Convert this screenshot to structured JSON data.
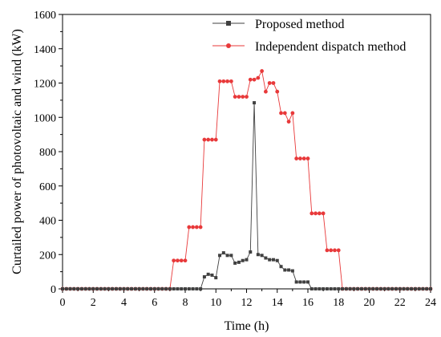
{
  "chart_data": {
    "type": "line",
    "title": "",
    "xlabel": "Time (h)",
    "ylabel": "Curtailed power of photovoltaic and wind (kW)",
    "xlim": [
      0,
      24
    ],
    "ylim": [
      0,
      1600
    ],
    "xticks": [
      0,
      2,
      4,
      6,
      8,
      10,
      12,
      14,
      16,
      18,
      20,
      22,
      24
    ],
    "yticks": [
      0,
      200,
      400,
      600,
      800,
      1000,
      1200,
      1400,
      1600
    ],
    "grid": false,
    "legend_position": "top-right",
    "series": [
      {
        "name": "Proposed method",
        "color": "#404040",
        "marker": "square",
        "x": [
          0,
          0.25,
          0.5,
          0.75,
          1,
          1.25,
          1.5,
          1.75,
          2,
          2.25,
          2.5,
          2.75,
          3,
          3.25,
          3.5,
          3.75,
          4,
          4.25,
          4.5,
          4.75,
          5,
          5.25,
          5.5,
          5.75,
          6,
          6.25,
          6.5,
          6.75,
          7,
          7.25,
          7.5,
          7.75,
          8,
          8.25,
          8.5,
          8.75,
          9,
          9.25,
          9.5,
          9.75,
          10,
          10.25,
          10.5,
          10.75,
          11,
          11.25,
          11.5,
          11.75,
          12,
          12.25,
          12.5,
          12.75,
          13,
          13.25,
          13.5,
          13.75,
          14,
          14.25,
          14.5,
          14.75,
          15,
          15.25,
          15.5,
          15.75,
          16,
          16.25,
          16.5,
          16.75,
          17,
          17.25,
          17.5,
          17.75,
          18,
          18.25,
          18.5,
          18.75,
          19,
          19.25,
          19.5,
          19.75,
          20,
          20.25,
          20.5,
          20.75,
          21,
          21.25,
          21.5,
          21.75,
          22,
          22.25,
          22.5,
          22.75,
          23,
          23.25,
          23.5,
          23.75,
          24
        ],
        "y": [
          0,
          0,
          0,
          0,
          0,
          0,
          0,
          0,
          0,
          0,
          0,
          0,
          0,
          0,
          0,
          0,
          0,
          0,
          0,
          0,
          0,
          0,
          0,
          0,
          0,
          0,
          0,
          0,
          0,
          0,
          0,
          0,
          0,
          0,
          0,
          0,
          0,
          70,
          85,
          80,
          65,
          195,
          210,
          195,
          195,
          150,
          155,
          165,
          170,
          215,
          1085,
          200,
          195,
          180,
          170,
          170,
          165,
          130,
          110,
          110,
          105,
          40,
          40,
          40,
          40,
          0,
          0,
          0,
          0,
          0,
          0,
          0,
          0,
          0,
          0,
          0,
          0,
          0,
          0,
          0,
          0,
          0,
          0,
          0,
          0,
          0,
          0,
          0,
          0,
          0,
          0,
          0,
          0,
          0,
          0,
          0,
          0
        ]
      },
      {
        "name": "Independent dispatch method",
        "color": "#e8393a",
        "marker": "circle",
        "x": [
          0,
          0.25,
          0.5,
          0.75,
          1,
          1.25,
          1.5,
          1.75,
          2,
          2.25,
          2.5,
          2.75,
          3,
          3.25,
          3.5,
          3.75,
          4,
          4.25,
          4.5,
          4.75,
          5,
          5.25,
          5.5,
          5.75,
          6,
          6.25,
          6.5,
          6.75,
          7,
          7.25,
          7.5,
          7.75,
          8,
          8.25,
          8.5,
          8.75,
          9,
          9.25,
          9.5,
          9.75,
          10,
          10.25,
          10.5,
          10.75,
          11,
          11.25,
          11.5,
          11.75,
          12,
          12.25,
          12.5,
          12.75,
          13,
          13.25,
          13.5,
          13.75,
          14,
          14.25,
          14.5,
          14.75,
          15,
          15.25,
          15.5,
          15.75,
          16,
          16.25,
          16.5,
          16.75,
          17,
          17.25,
          17.5,
          17.75,
          18,
          18.25,
          18.5,
          18.75,
          19,
          19.25,
          19.5,
          19.75,
          20,
          20.25,
          20.5,
          20.75,
          21,
          21.25,
          21.5,
          21.75,
          22,
          22.25,
          22.5,
          22.75,
          23,
          23.25,
          23.5,
          23.75,
          24
        ],
        "y": [
          0,
          0,
          0,
          0,
          0,
          0,
          0,
          0,
          0,
          0,
          0,
          0,
          0,
          0,
          0,
          0,
          0,
          0,
          0,
          0,
          0,
          0,
          0,
          0,
          0,
          0,
          0,
          0,
          0,
          165,
          165,
          165,
          165,
          360,
          360,
          360,
          360,
          870,
          870,
          870,
          870,
          1210,
          1210,
          1210,
          1210,
          1120,
          1120,
          1120,
          1120,
          1220,
          1220,
          1230,
          1270,
          1150,
          1200,
          1200,
          1150,
          1025,
          1025,
          975,
          1025,
          760,
          760,
          760,
          760,
          440,
          440,
          440,
          440,
          225,
          225,
          225,
          225,
          0,
          0,
          0,
          0,
          0,
          0,
          0,
          0,
          0,
          0,
          0,
          0,
          0,
          0,
          0,
          0,
          0,
          0,
          0,
          0,
          0,
          0,
          0,
          0
        ]
      }
    ]
  }
}
